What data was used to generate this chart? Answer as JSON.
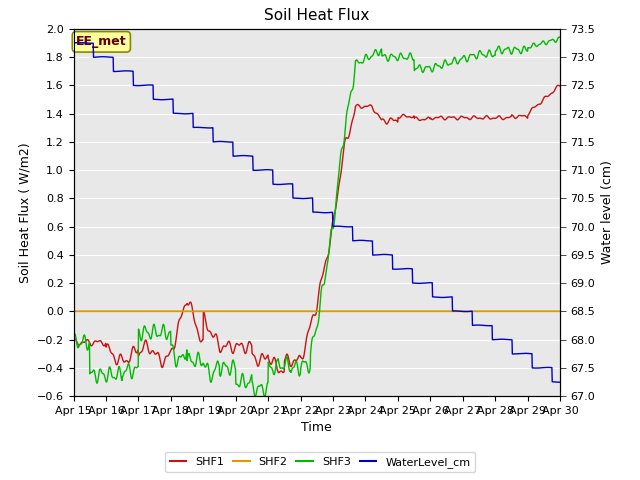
{
  "title": "Soil Heat Flux",
  "xlabel": "Time",
  "ylabel_left": "Soil Heat Flux ( W/m2)",
  "ylabel_right": "Water level (cm)",
  "ylim_left": [
    -0.6,
    2.0
  ],
  "ylim_right": [
    67.0,
    73.5
  ],
  "yticks_left": [
    -0.6,
    -0.4,
    -0.2,
    0.0,
    0.2,
    0.4,
    0.6,
    0.8,
    1.0,
    1.2,
    1.4,
    1.6,
    1.8,
    2.0
  ],
  "yticks_right": [
    67.0,
    67.5,
    68.0,
    68.5,
    69.0,
    69.5,
    70.0,
    70.5,
    71.0,
    71.5,
    72.0,
    72.5,
    73.0,
    73.5
  ],
  "xtick_labels": [
    "Apr 15",
    "Apr 16",
    "Apr 17",
    "Apr 18",
    "Apr 19",
    "Apr 20",
    "Apr 21",
    "Apr 22",
    "Apr 23",
    "Apr 24",
    "Apr 25",
    "Apr 26",
    "Apr 27",
    "Apr 28",
    "Apr 29",
    "Apr 30"
  ],
  "colors": {
    "SHF1": "#cc1111",
    "SHF2": "#dd9900",
    "SHF3": "#00bb00",
    "WaterLevel_cm": "#0000cc"
  },
  "annotation_text": "EE_met",
  "background_color": "#e8e8e8",
  "grid_color": "#ffffff",
  "title_fontsize": 11,
  "axis_fontsize": 9,
  "tick_fontsize": 8
}
